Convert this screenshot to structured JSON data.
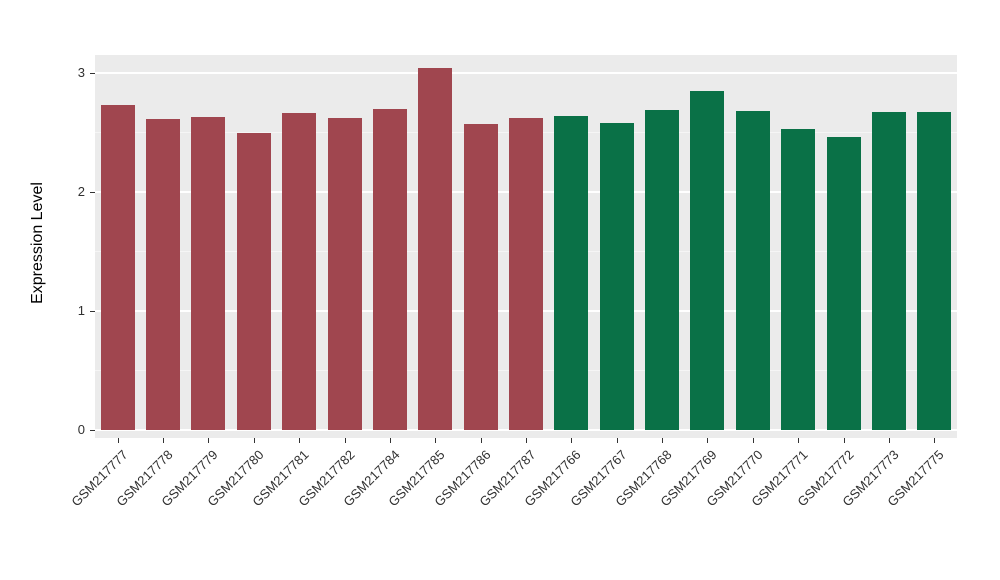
{
  "figure": {
    "background": "#FFFFFF",
    "panel_background": "#EBEBEB",
    "grid_major_color": "#FFFFFF",
    "grid_minor_color": "#F5F5F5",
    "axis_text_color": "#303030",
    "axis_title_color": "#000000"
  },
  "chart_data": {
    "type": "bar",
    "title": "",
    "xlabel": "",
    "ylabel": "Expression Level",
    "ylim": [
      0,
      3.2
    ],
    "yticks": [
      0,
      1,
      2,
      3
    ],
    "grid": true,
    "legend_position": "none",
    "categories": [
      "GSM217777",
      "GSM217778",
      "GSM217779",
      "GSM217780",
      "GSM217781",
      "GSM217782",
      "GSM217784",
      "GSM217785",
      "GSM217786",
      "GSM217787",
      "GSM217766",
      "GSM217767",
      "GSM217768",
      "GSM217769",
      "GSM217770",
      "GSM217771",
      "GSM217772",
      "GSM217773",
      "GSM217775"
    ],
    "values": [
      2.73,
      2.61,
      2.63,
      2.5,
      2.66,
      2.62,
      2.7,
      3.04,
      2.57,
      2.62,
      2.64,
      2.58,
      2.69,
      2.85,
      2.68,
      2.53,
      2.46,
      2.67,
      2.67
    ],
    "bar_colors": [
      "#A0464F",
      "#A0464F",
      "#A0464F",
      "#A0464F",
      "#A0464F",
      "#A0464F",
      "#A0464F",
      "#A0464F",
      "#A0464F",
      "#A0464F",
      "#0A7147",
      "#0A7147",
      "#0A7147",
      "#0A7147",
      "#0A7147",
      "#0A7147",
      "#0A7147",
      "#0A7147",
      "#0A7147"
    ],
    "group_colors": {
      "group_1": "#A0464F",
      "group_2": "#0A7147"
    }
  }
}
